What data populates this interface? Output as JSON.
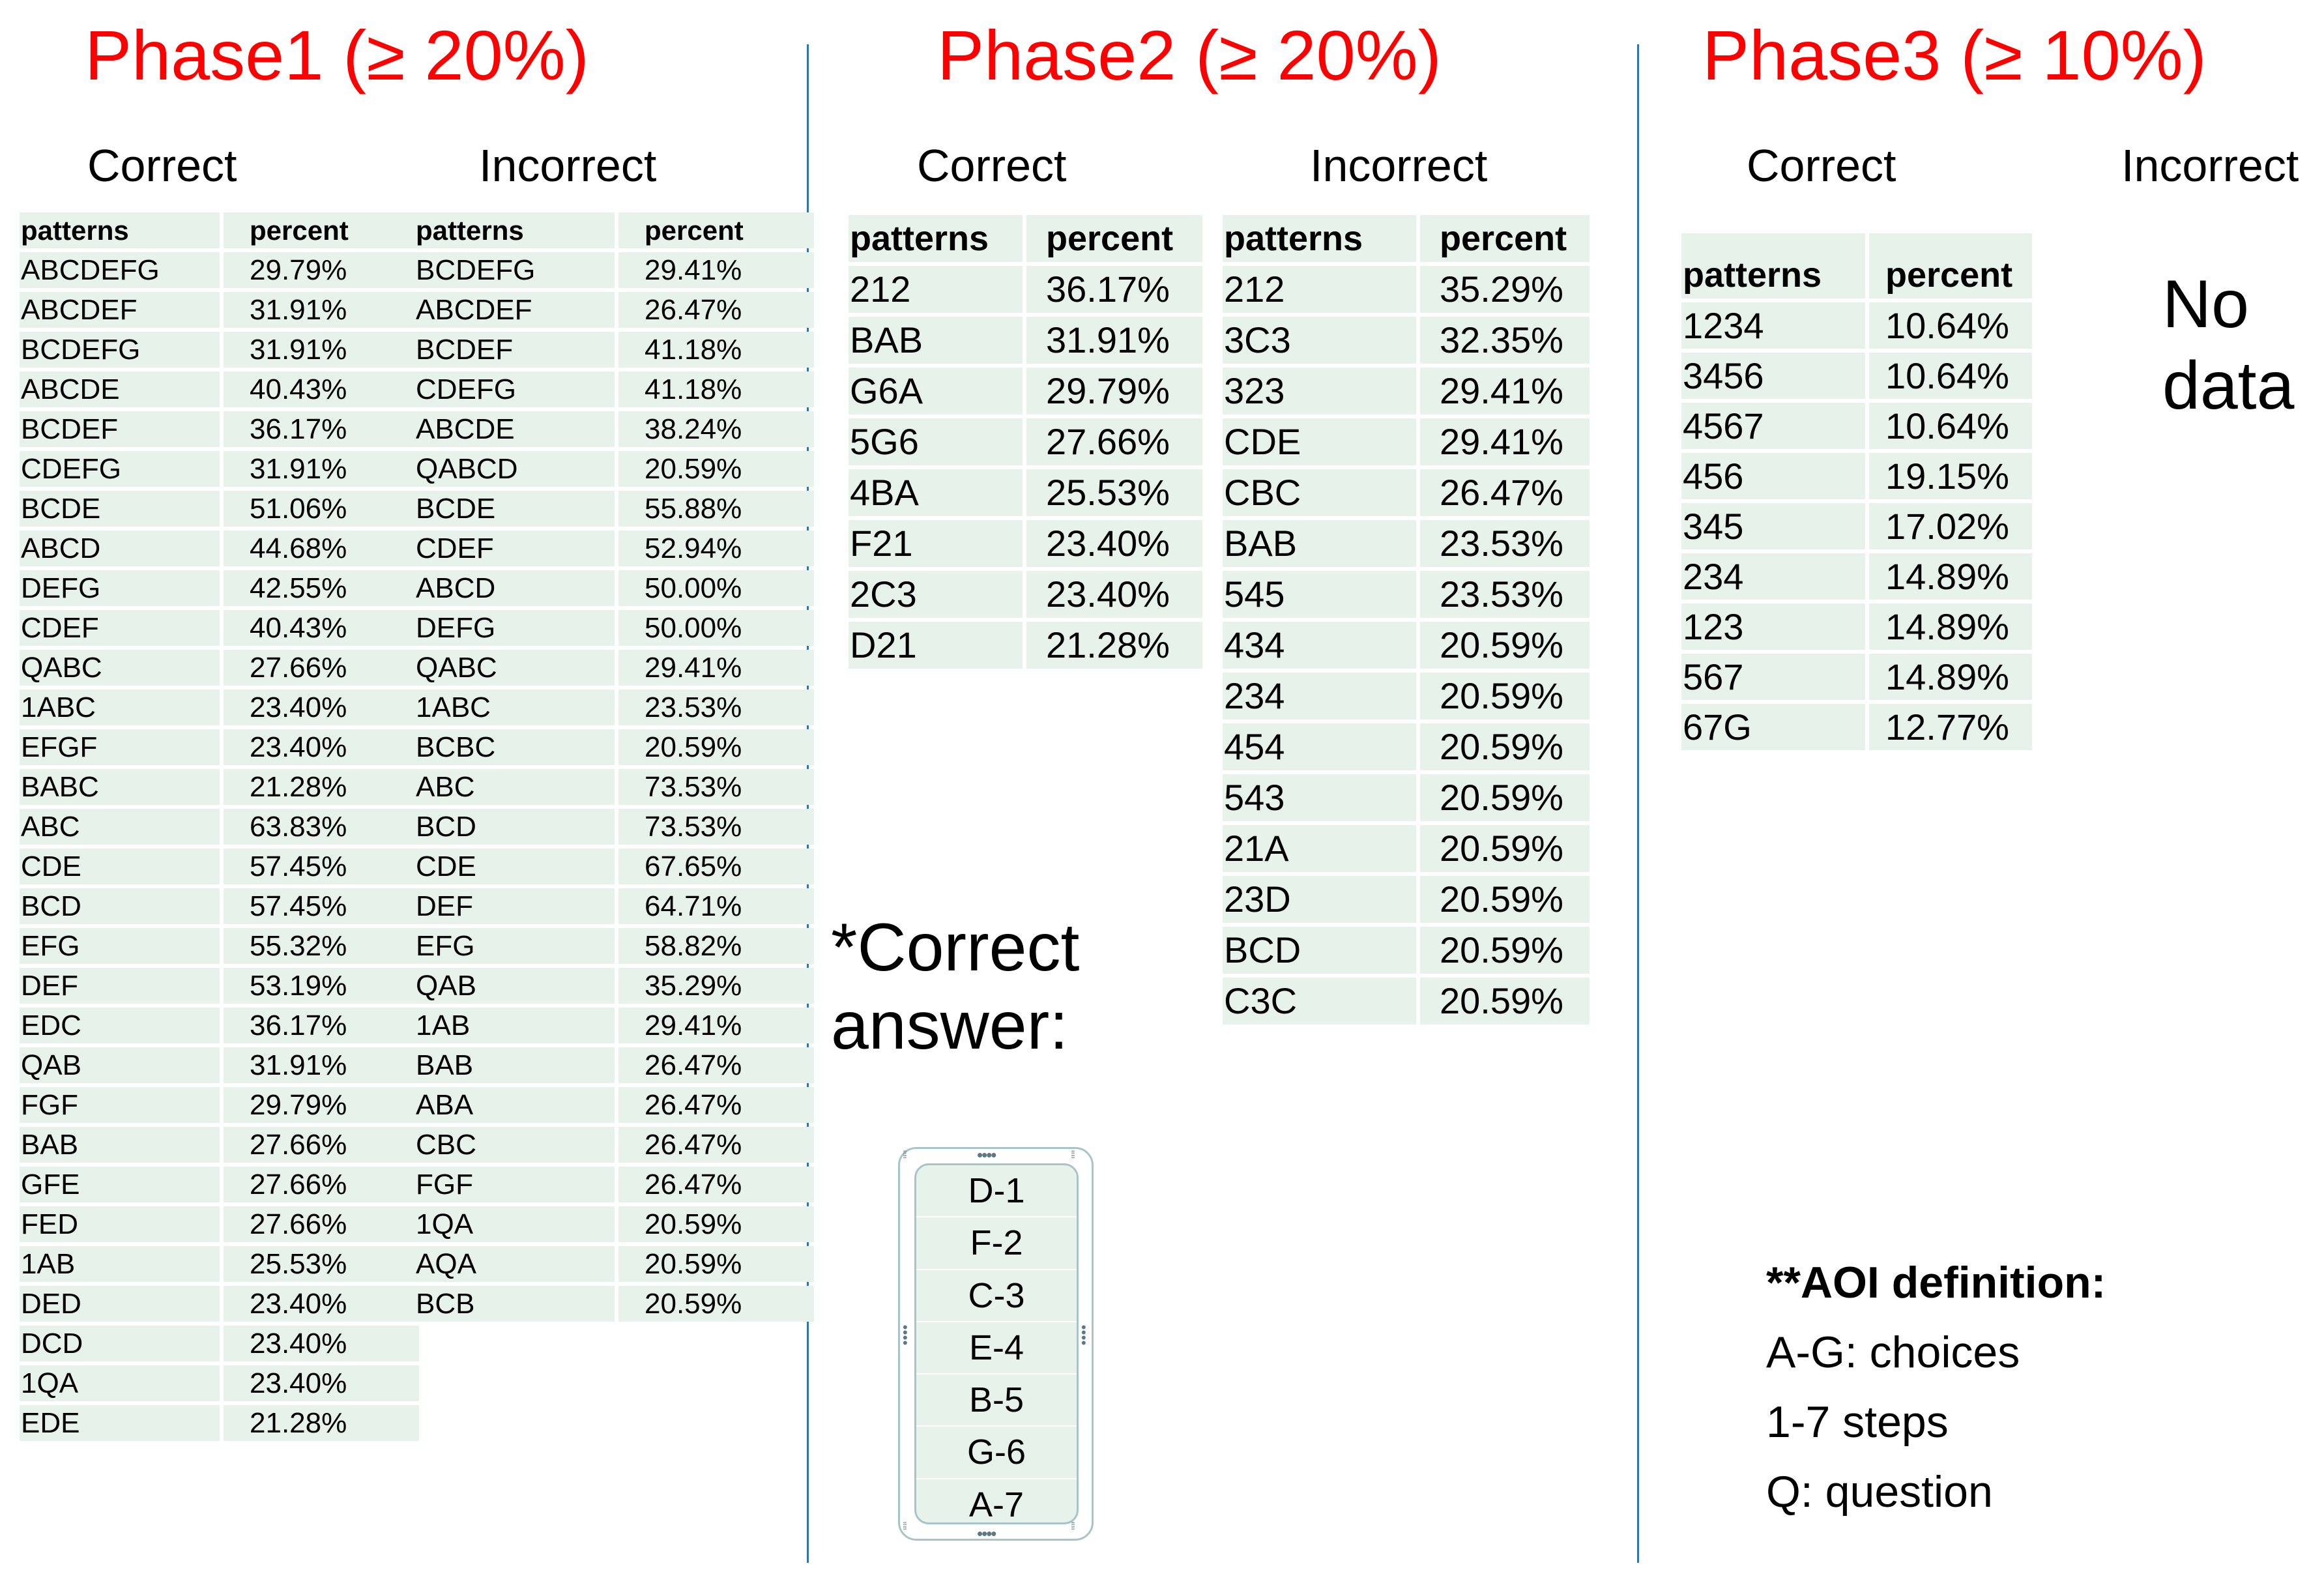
{
  "phase1": {
    "title": "Phase1 (≥ 20%)",
    "correct_heading": "Correct",
    "incorrect_heading": "Incorrect",
    "col_patterns": "patterns",
    "col_percent": "percent",
    "correct_rows": [
      [
        "ABCDEFG",
        "29.79%"
      ],
      [
        "ABCDEF",
        "31.91%"
      ],
      [
        "BCDEFG",
        "31.91%"
      ],
      [
        "ABCDE",
        "40.43%"
      ],
      [
        "BCDEF",
        "36.17%"
      ],
      [
        "CDEFG",
        "31.91%"
      ],
      [
        "BCDE",
        "51.06%"
      ],
      [
        "ABCD",
        "44.68%"
      ],
      [
        "DEFG",
        "42.55%"
      ],
      [
        "CDEF",
        "40.43%"
      ],
      [
        "QABC",
        "27.66%"
      ],
      [
        "1ABC",
        "23.40%"
      ],
      [
        "EFGF",
        "23.40%"
      ],
      [
        "BABC",
        "21.28%"
      ],
      [
        "ABC",
        "63.83%"
      ],
      [
        "CDE",
        "57.45%"
      ],
      [
        "BCD",
        "57.45%"
      ],
      [
        "EFG",
        "55.32%"
      ],
      [
        "DEF",
        "53.19%"
      ],
      [
        "EDC",
        "36.17%"
      ],
      [
        "QAB",
        "31.91%"
      ],
      [
        "FGF",
        "29.79%"
      ],
      [
        "BAB",
        "27.66%"
      ],
      [
        "GFE",
        "27.66%"
      ],
      [
        "FED",
        "27.66%"
      ],
      [
        "1AB",
        "25.53%"
      ],
      [
        "DED",
        "23.40%"
      ],
      [
        "DCD",
        "23.40%"
      ],
      [
        "1QA",
        "23.40%"
      ],
      [
        "EDE",
        "21.28%"
      ]
    ],
    "incorrect_rows": [
      [
        "BCDEFG",
        "29.41%"
      ],
      [
        "ABCDEF",
        "26.47%"
      ],
      [
        "BCDEF",
        "41.18%"
      ],
      [
        "CDEFG",
        "41.18%"
      ],
      [
        "ABCDE",
        "38.24%"
      ],
      [
        "QABCD",
        "20.59%"
      ],
      [
        "BCDE",
        "55.88%"
      ],
      [
        "CDEF",
        "52.94%"
      ],
      [
        "ABCD",
        "50.00%"
      ],
      [
        "DEFG",
        "50.00%"
      ],
      [
        "QABC",
        "29.41%"
      ],
      [
        "1ABC",
        "23.53%"
      ],
      [
        "BCBC",
        "20.59%"
      ],
      [
        "ABC",
        "73.53%"
      ],
      [
        "BCD",
        "73.53%"
      ],
      [
        "CDE",
        "67.65%"
      ],
      [
        "DEF",
        "64.71%"
      ],
      [
        "EFG",
        "58.82%"
      ],
      [
        "QAB",
        "35.29%"
      ],
      [
        "1AB",
        "29.41%"
      ],
      [
        "BAB",
        "26.47%"
      ],
      [
        "ABA",
        "26.47%"
      ],
      [
        "CBC",
        "26.47%"
      ],
      [
        "FGF",
        "26.47%"
      ],
      [
        "1QA",
        "20.59%"
      ],
      [
        "AQA",
        "20.59%"
      ],
      [
        "BCB",
        "20.59%"
      ]
    ]
  },
  "phase2": {
    "title": "Phase2 (≥ 20%)",
    "correct_heading": "Correct",
    "incorrect_heading": "Incorrect",
    "col_patterns": "patterns",
    "col_percent": "percent",
    "correct_rows": [
      [
        "212",
        "36.17%"
      ],
      [
        "BAB",
        "31.91%"
      ],
      [
        "G6A",
        "29.79%"
      ],
      [
        "5G6",
        "27.66%"
      ],
      [
        "4BA",
        "25.53%"
      ],
      [
        "F21",
        "23.40%"
      ],
      [
        "2C3",
        "23.40%"
      ],
      [
        "D21",
        "21.28%"
      ]
    ],
    "incorrect_rows": [
      [
        "212",
        "35.29%"
      ],
      [
        "3C3",
        "32.35%"
      ],
      [
        "323",
        "29.41%"
      ],
      [
        "CDE",
        "29.41%"
      ],
      [
        "CBC",
        "26.47%"
      ],
      [
        "BAB",
        "23.53%"
      ],
      [
        "545",
        "23.53%"
      ],
      [
        "434",
        "20.59%"
      ],
      [
        "234",
        "20.59%"
      ],
      [
        "454",
        "20.59%"
      ],
      [
        "543",
        "20.59%"
      ],
      [
        "21A",
        "20.59%"
      ],
      [
        "23D",
        "20.59%"
      ],
      [
        "BCD",
        "20.59%"
      ],
      [
        "C3C",
        "20.59%"
      ]
    ],
    "correct_answer_line1": "*Correct",
    "correct_answer_line2": "answer:",
    "answer_items": [
      "D-1",
      "F-2",
      "C-3",
      "E-4",
      "B-5",
      "G-6",
      "A-7"
    ]
  },
  "phase3": {
    "title": "Phase3 (≥ 10%)",
    "correct_heading": "Correct",
    "incorrect_heading": "Incorrect",
    "col_patterns": "patterns",
    "col_percent": "percent",
    "correct_rows": [
      [
        "1234",
        "10.64%"
      ],
      [
        "3456",
        "10.64%"
      ],
      [
        "4567",
        "10.64%"
      ],
      [
        "456",
        "19.15%"
      ],
      [
        "345",
        "17.02%"
      ],
      [
        "234",
        "14.89%"
      ],
      [
        "123",
        "14.89%"
      ],
      [
        "567",
        "14.89%"
      ],
      [
        "67G",
        "12.77%"
      ]
    ],
    "no_data_line1": "No",
    "no_data_line2": "data"
  },
  "aoi": {
    "heading": "**AOI definition:",
    "lines": [
      "A-G: choices",
      "1-7 steps",
      "Q: question"
    ]
  },
  "colors": {
    "title": "#ff0000",
    "table_bg": "#e6f2ea",
    "divider": "#2e75b6"
  }
}
